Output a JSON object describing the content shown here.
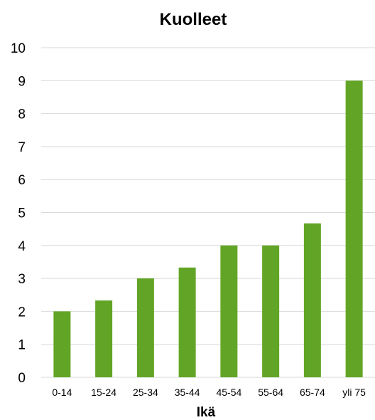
{
  "chart_data": {
    "type": "bar",
    "title": "Kuolleet",
    "xlabel": "Ikä",
    "ylabel": "",
    "categories": [
      "0-14",
      "15-24",
      "25-34",
      "35-44",
      "45-54",
      "55-64",
      "65-74",
      "yli 75"
    ],
    "values": [
      2,
      2.33,
      3,
      3.33,
      4,
      4,
      4.67,
      9
    ],
    "ylim": [
      0,
      10
    ],
    "yticks": [
      "0",
      "1",
      "2",
      "3",
      "4",
      "5",
      "6",
      "7",
      "8",
      "9",
      "10"
    ],
    "grid": true,
    "legend": "none",
    "bar_color": "#62a526"
  }
}
